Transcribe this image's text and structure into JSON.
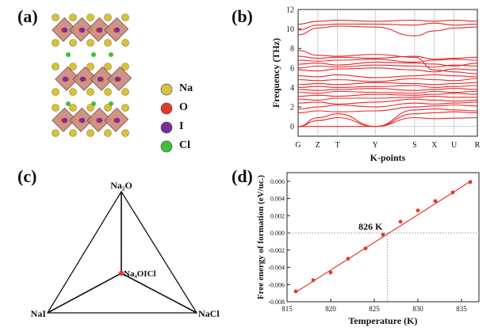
{
  "panels": {
    "a": "(a)",
    "b": "(b)",
    "c": "(c)",
    "d": "(d)"
  },
  "structure_legend": {
    "items": [
      {
        "label": "Na",
        "color": "#d8c23a"
      },
      {
        "label": "O",
        "color": "#e03a2a"
      },
      {
        "label": "I",
        "color": "#7a2a9a"
      },
      {
        "label": "Cl",
        "color": "#3fbf3a"
      }
    ]
  },
  "chart_data": [
    {
      "type": "line",
      "panel": "b",
      "xlabel": "K-points",
      "ylabel": "Frequency (THz)",
      "ylim": [
        -1,
        12
      ],
      "yticks": [
        0,
        2,
        4,
        6,
        8,
        10,
        12
      ],
      "kpoints": [
        "G",
        "Z",
        "T",
        "Y",
        "S",
        "X",
        "U",
        "R"
      ],
      "kpoint_positions": [
        0,
        0.11,
        0.22,
        0.43,
        0.65,
        0.76,
        0.87,
        1.0
      ],
      "series_color": "#e8282a",
      "bands": [
        [
          0.0,
          0.0,
          0.0,
          0.0,
          0.9,
          0.8,
          0.85,
          0.9
        ],
        [
          0.0,
          0.6,
          0.9,
          0.0,
          1.3,
          1.4,
          1.5,
          1.4
        ],
        [
          0.0,
          0.9,
          1.3,
          0.0,
          1.7,
          1.8,
          1.7,
          1.6
        ],
        [
          1.4,
          1.6,
          1.5,
          1.6,
          2.0,
          2.1,
          2.2,
          2.1
        ],
        [
          1.8,
          2.0,
          2.2,
          2.0,
          2.4,
          2.3,
          2.4,
          2.5
        ],
        [
          2.4,
          2.5,
          2.3,
          2.5,
          2.8,
          2.7,
          2.6,
          2.7
        ],
        [
          2.8,
          2.7,
          2.9,
          2.9,
          3.0,
          3.1,
          3.0,
          3.0
        ],
        [
          3.1,
          3.2,
          3.1,
          3.3,
          3.2,
          3.3,
          3.4,
          3.3
        ],
        [
          3.5,
          3.4,
          3.6,
          3.5,
          3.4,
          3.6,
          3.5,
          3.6
        ],
        [
          3.8,
          3.7,
          3.8,
          3.9,
          3.7,
          3.8,
          3.9,
          3.8
        ],
        [
          4.0,
          4.1,
          4.0,
          4.1,
          4.2,
          4.0,
          4.1,
          4.2
        ],
        [
          4.3,
          4.4,
          4.3,
          4.5,
          4.4,
          4.3,
          4.4,
          4.5
        ],
        [
          4.8,
          4.7,
          4.8,
          4.6,
          4.9,
          4.8,
          4.7,
          4.9
        ],
        [
          5.2,
          5.1,
          5.3,
          5.0,
          5.2,
          5.3,
          5.2,
          5.1
        ],
        [
          5.8,
          5.7,
          5.9,
          6.0,
          5.8,
          5.6,
          5.9,
          5.8
        ],
        [
          6.0,
          6.2,
          6.1,
          6.3,
          6.2,
          6.1,
          6.3,
          6.2
        ],
        [
          6.4,
          6.5,
          6.3,
          6.6,
          6.5,
          6.4,
          6.2,
          6.5
        ],
        [
          6.8,
          6.7,
          6.8,
          6.9,
          6.6,
          6.8,
          6.9,
          6.8
        ],
        [
          7.2,
          7.0,
          7.1,
          7.0,
          7.2,
          6.9,
          7.0,
          7.1
        ],
        [
          7.8,
          7.3,
          7.2,
          7.4,
          7.1,
          5.8,
          5.6,
          5.4
        ],
        [
          9.4,
          10.1,
          10.3,
          10.2,
          9.3,
          9.8,
          10.1,
          10.2
        ],
        [
          9.9,
          10.4,
          10.5,
          10.5,
          10.4,
          10.6,
          10.4,
          10.5
        ],
        [
          10.5,
          10.8,
          10.9,
          10.8,
          10.9,
          10.8,
          10.9,
          10.8
        ]
      ]
    },
    {
      "type": "diagram",
      "panel": "c",
      "vertices": {
        "top": "Na₂O",
        "left": "NaI",
        "right": "NaCl"
      },
      "center": "Na₄OICl",
      "marker_color": "#e03a2a"
    },
    {
      "type": "scatter",
      "panel": "d",
      "xlabel": "Temperature (K)",
      "ylabel": "Free energy of formation (eV/uc.)",
      "xlim": [
        815,
        837
      ],
      "ylim": [
        -0.008,
        0.007
      ],
      "xticks": [
        815,
        820,
        825,
        830,
        835
      ],
      "yticks": [
        -0.008,
        -0.006,
        -0.004,
        -0.002,
        0.0,
        0.002,
        0.004,
        0.006
      ],
      "ytick_labels": [
        "-0.008",
        "-0.006",
        "-0.004",
        "-0.002",
        "0.000",
        "0.002",
        "0.004",
        "0.006"
      ],
      "x": [
        816,
        818,
        820,
        822,
        824,
        826,
        828,
        830,
        832,
        834,
        836
      ],
      "y": [
        -0.0068,
        -0.0055,
        -0.0046,
        -0.003,
        -0.0018,
        -0.0002,
        0.0013,
        0.0026,
        0.0037,
        0.0047,
        0.0059
      ],
      "fit_line": {
        "x": [
          816,
          836.2
        ],
        "y": [
          -0.0069,
          0.0061
        ]
      },
      "crossing": {
        "x": 826.5,
        "y": 0.0,
        "label": "826 K"
      },
      "series_color": "#e03a2a"
    }
  ]
}
